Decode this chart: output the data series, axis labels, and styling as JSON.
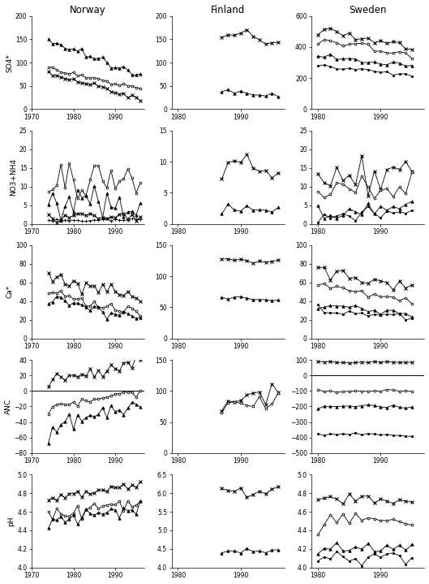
{
  "title_norway": "Norway",
  "title_finland": "Finland",
  "title_sweden": "Sweden",
  "norway": {
    "so4": {
      "xlim": [
        1970,
        1997
      ],
      "xticks": [
        1970,
        1980,
        1990
      ],
      "ylim": [
        0,
        200
      ],
      "yticks": [
        0,
        50,
        100,
        150,
        200
      ],
      "xstart": 1974,
      "n": 23,
      "series": [
        {
          "marker": "^",
          "filled": true,
          "base": 148,
          "slope": -3.5,
          "noise": 8
        },
        {
          "marker": "o",
          "filled": false,
          "base": 88,
          "slope": -2.0,
          "noise": 5
        },
        {
          "marker": "x",
          "filled": true,
          "base": 78,
          "slope": -2.5,
          "noise": 4
        }
      ]
    },
    "no3nh4": {
      "xlim": [
        1970,
        1997
      ],
      "xticks": [
        1970,
        1980,
        1990
      ],
      "ylim": [
        0,
        25
      ],
      "yticks": [
        0,
        5,
        10,
        15,
        20,
        25
      ],
      "xstart": 1974,
      "n": 23,
      "series": [
        {
          "marker": "o",
          "filled": false,
          "base": 10,
          "slope": 0.1,
          "noise": 4
        },
        {
          "marker": "^",
          "filled": true,
          "base": 5,
          "slope": 0.0,
          "noise": 3
        },
        {
          "marker": "x",
          "filled": true,
          "base": 2,
          "slope": 0.0,
          "noise": 0.8
        },
        {
          "marker": "+",
          "filled": true,
          "base": 1,
          "slope": 0.0,
          "noise": 0.3
        }
      ]
    },
    "ca": {
      "xlim": [
        1970,
        1997
      ],
      "xticks": [
        1970,
        1980,
        1990
      ],
      "ylim": [
        0,
        100
      ],
      "yticks": [
        0,
        20,
        40,
        60,
        80,
        100
      ],
      "xstart": 1974,
      "n": 23,
      "series": [
        {
          "marker": "x",
          "filled": true,
          "base": 68,
          "slope": -1.2,
          "noise": 5
        },
        {
          "marker": "o",
          "filled": false,
          "base": 50,
          "slope": -1.0,
          "noise": 4
        },
        {
          "marker": "^",
          "filled": true,
          "base": 42,
          "slope": -1.0,
          "noise": 4
        }
      ]
    },
    "anc": {
      "xlim": [
        1970,
        1997
      ],
      "xticks": [
        1970,
        1980,
        1990
      ],
      "ylim": [
        -80,
        40
      ],
      "yticks": [
        -80,
        -60,
        -40,
        -20,
        0,
        20,
        40
      ],
      "zero_line": true,
      "xstart": 1974,
      "n": 23,
      "series": [
        {
          "marker": "x",
          "filled": true,
          "base": 12,
          "slope": 1.2,
          "noise": 6
        },
        {
          "marker": "o",
          "filled": false,
          "base": -22,
          "slope": 1.0,
          "noise": 5
        },
        {
          "marker": "^",
          "filled": true,
          "base": -50,
          "slope": 1.5,
          "noise": 8
        }
      ]
    },
    "ph": {
      "xlim": [
        1970,
        1997
      ],
      "xticks": [
        1970,
        1980,
        1990
      ],
      "ylim": [
        4.0,
        5.0
      ],
      "yticks": [
        4.0,
        4.2,
        4.4,
        4.6,
        4.8,
        5.0
      ],
      "xstart": 1974,
      "n": 23,
      "series": [
        {
          "marker": "x",
          "filled": true,
          "base": 4.72,
          "slope": 0.008,
          "noise": 0.04
        },
        {
          "marker": "o",
          "filled": false,
          "base": 4.58,
          "slope": 0.006,
          "noise": 0.05
        },
        {
          "marker": "^",
          "filled": true,
          "base": 4.5,
          "slope": 0.006,
          "noise": 0.05
        }
      ]
    }
  },
  "finland": {
    "so4": {
      "xlim": [
        1979,
        1997
      ],
      "xticks": [
        1980,
        1990
      ],
      "ylim": [
        0,
        200
      ],
      "yticks": [
        0,
        50,
        100,
        150,
        200
      ],
      "xstart": 1987,
      "n": 10,
      "series": [
        {
          "marker": "x",
          "filled": true,
          "base": 162,
          "slope": -1.5,
          "noise": 8
        },
        {
          "marker": "^",
          "filled": true,
          "base": 38,
          "slope": -1.0,
          "noise": 4
        }
      ]
    },
    "no3nh4": {
      "xlim": [
        1979,
        1997
      ],
      "xticks": [
        1980,
        1990
      ],
      "ylim": [
        0,
        15
      ],
      "yticks": [
        0,
        5,
        10,
        15
      ],
      "xstart": 1987,
      "n": 10,
      "series": [
        {
          "marker": "x",
          "filled": true,
          "base": 9.5,
          "slope": -0.2,
          "noise": 2
        },
        {
          "marker": "^",
          "filled": true,
          "base": 2.5,
          "slope": 0.0,
          "noise": 0.5
        }
      ]
    },
    "ca": {
      "xlim": [
        1979,
        1997
      ],
      "xticks": [
        1980,
        1990
      ],
      "ylim": [
        0,
        150
      ],
      "yticks": [
        0,
        50,
        100,
        150
      ],
      "xstart": 1987,
      "n": 10,
      "series": [
        {
          "marker": "x",
          "filled": true,
          "base": 128,
          "slope": -0.5,
          "noise": 4
        },
        {
          "marker": "^",
          "filled": true,
          "base": 65,
          "slope": -0.3,
          "noise": 3
        }
      ]
    },
    "anc": {
      "xlim": [
        1979,
        1997
      ],
      "xticks": [
        1980,
        1990
      ],
      "ylim": [
        0,
        150
      ],
      "yticks": [
        0,
        50,
        100,
        150
      ],
      "zero_line": false,
      "xstart": 1987,
      "n": 10,
      "series": [
        {
          "marker": "x",
          "filled": true,
          "base": 85,
          "slope": 1.5,
          "noise": 15
        },
        {
          "marker": "o",
          "filled": false,
          "base": 72,
          "slope": 1.0,
          "noise": 12
        }
      ]
    },
    "ph": {
      "xlim": [
        1979,
        1997
      ],
      "xticks": [
        1980,
        1990
      ],
      "ylim": [
        4.0,
        6.5
      ],
      "yticks": [
        4.0,
        4.5,
        5.0,
        5.5,
        6.0,
        6.5
      ],
      "xstart": 1987,
      "n": 10,
      "series": [
        {
          "marker": "x",
          "filled": true,
          "base": 6.0,
          "slope": 0.01,
          "noise": 0.1
        },
        {
          "marker": "^",
          "filled": true,
          "base": 4.45,
          "slope": 0.0,
          "noise": 0.05
        }
      ]
    }
  },
  "sweden": {
    "so4": {
      "xlim": [
        1979,
        1997
      ],
      "xticks": [
        1980,
        1990
      ],
      "ylim": [
        0,
        600
      ],
      "yticks": [
        0,
        200,
        400,
        600
      ],
      "xstart": 1980,
      "n": 16,
      "series": [
        {
          "marker": "x",
          "filled": true,
          "base": 510,
          "slope": -8,
          "noise": 25
        },
        {
          "marker": "o",
          "filled": false,
          "base": 460,
          "slope": -8,
          "noise": 20
        },
        {
          "marker": "^",
          "filled": true,
          "base": 350,
          "slope": -5,
          "noise": 15
        },
        {
          "marker": "s",
          "filled": true,
          "base": 280,
          "slope": -4,
          "noise": 12
        }
      ]
    },
    "no3nh4": {
      "xlim": [
        1979,
        1997
      ],
      "xticks": [
        1980,
        1990
      ],
      "ylim": [
        0,
        25
      ],
      "yticks": [
        0,
        5,
        10,
        15,
        20,
        25
      ],
      "xstart": 1980,
      "n": 16,
      "series": [
        {
          "marker": "x",
          "filled": true,
          "base": 12,
          "slope": 0.2,
          "noise": 4
        },
        {
          "marker": "o",
          "filled": false,
          "base": 8,
          "slope": 0.2,
          "noise": 3
        },
        {
          "marker": "^",
          "filled": true,
          "base": 3,
          "slope": 0.1,
          "noise": 1.5
        },
        {
          "marker": "s",
          "filled": true,
          "base": 2,
          "slope": 0.1,
          "noise": 1.0
        }
      ]
    },
    "ca": {
      "xlim": [
        1979,
        1997
      ],
      "xticks": [
        1980,
        1990
      ],
      "ylim": [
        0,
        100
      ],
      "yticks": [
        0,
        20,
        40,
        60,
        80,
        100
      ],
      "xstart": 1980,
      "n": 16,
      "series": [
        {
          "marker": "x",
          "filled": true,
          "base": 75,
          "slope": -1.5,
          "noise": 5
        },
        {
          "marker": "o",
          "filled": false,
          "base": 58,
          "slope": -1.2,
          "noise": 4
        },
        {
          "marker": "^",
          "filled": true,
          "base": 38,
          "slope": -0.8,
          "noise": 3
        },
        {
          "marker": "s",
          "filled": true,
          "base": 30,
          "slope": -0.6,
          "noise": 3
        }
      ]
    },
    "anc": {
      "xlim": [
        1979,
        1997
      ],
      "xticks": [
        1980,
        1990
      ],
      "ylim": [
        -500,
        100
      ],
      "yticks": [
        -500,
        -400,
        -300,
        -200,
        -100,
        0,
        100
      ],
      "zero_line": true,
      "xstart": 1980,
      "n": 16,
      "series": [
        {
          "marker": "x",
          "filled": true,
          "base": 85,
          "slope": 0.0,
          "noise": 5
        },
        {
          "marker": "o",
          "filled": false,
          "base": -100,
          "slope": 0.0,
          "noise": 5
        },
        {
          "marker": "^",
          "filled": true,
          "base": -200,
          "slope": 0.0,
          "noise": 8
        },
        {
          "marker": "s",
          "filled": true,
          "base": -380,
          "slope": 0.0,
          "noise": 8
        }
      ]
    },
    "ph": {
      "xlim": [
        1979,
        1997
      ],
      "xticks": [
        1980,
        1990
      ],
      "ylim": [
        4.0,
        5.0
      ],
      "yticks": [
        4.0,
        4.2,
        4.4,
        4.6,
        4.8,
        5.0
      ],
      "xstart": 1980,
      "n": 16,
      "series": [
        {
          "marker": "x",
          "filled": true,
          "base": 4.72,
          "slope": 0.0,
          "noise": 0.05
        },
        {
          "marker": "o",
          "filled": false,
          "base": 4.5,
          "slope": 0.0,
          "noise": 0.05
        },
        {
          "marker": "^",
          "filled": true,
          "base": 4.22,
          "slope": 0.0,
          "noise": 0.05
        },
        {
          "marker": "s",
          "filled": true,
          "base": 4.12,
          "slope": 0.0,
          "noise": 0.04
        }
      ]
    }
  }
}
